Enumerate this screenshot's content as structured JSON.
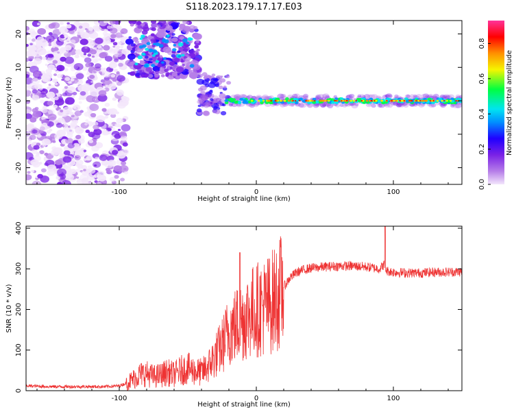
{
  "title": "S118.2023.179.17.17.E03",
  "chart_data": [
    {
      "type": "heatmap",
      "xlabel": "Height of straight line (km)",
      "ylabel": "Frequency (Hz)",
      "xlim": [
        -168,
        150
      ],
      "ylim": [
        -25,
        24
      ],
      "x_ticks": [
        -100,
        0,
        100
      ],
      "y_ticks": [
        -20,
        -10,
        0,
        10,
        20
      ],
      "colorbar": {
        "label": "Normalized spectral amplitude",
        "range": [
          0,
          0.93
        ],
        "ticks": [
          0.0,
          0.2,
          0.4,
          0.6,
          0.8
        ],
        "colors": [
          "#f3e6fb",
          "#b67ee8",
          "#7a22e6",
          "#2000ff",
          "#0090ff",
          "#00e5f0",
          "#00ff40",
          "#f5f500",
          "#ff9000",
          "#ff0000",
          "#ff3399"
        ]
      },
      "regions": [
        {
          "x": [
            -168,
            -95
          ],
          "freq": [
            -25,
            24
          ],
          "level": "scattered low amplitude noise"
        },
        {
          "x": [
            -93,
            -42
          ],
          "freq": [
            7,
            24
          ],
          "level": "moderate arc"
        },
        {
          "x": [
            -42,
            150
          ],
          "freq": [
            -2,
            2
          ],
          "level": "strong narrow line near 0 Hz"
        }
      ]
    },
    {
      "type": "line",
      "xlabel": "Height of straight line (km)",
      "ylabel": "SNR (10 * v/v)",
      "xlim": [
        -168,
        150
      ],
      "ylim": [
        0,
        405
      ],
      "x_ticks": [
        -100,
        0,
        100
      ],
      "y_ticks": [
        0,
        100,
        200,
        300,
        400
      ],
      "color": "#ee3333",
      "series": [
        {
          "x": [
            -168,
            -150,
            -130,
            -110,
            -100,
            -95,
            -90,
            -85,
            -80,
            -75,
            -70,
            -65,
            -60,
            -55,
            -50,
            -45,
            -40,
            -35,
            -30,
            -25,
            -20,
            -15,
            -10,
            -5,
            0,
            5,
            10,
            15,
            20,
            25,
            30,
            35,
            40,
            50,
            60,
            70,
            80,
            90,
            93,
            95,
            100,
            110,
            120,
            130,
            140,
            150
          ],
          "y": [
            12,
            10,
            10,
            10,
            12,
            18,
            28,
            40,
            42,
            35,
            38,
            45,
            40,
            50,
            55,
            48,
            45,
            60,
            85,
            110,
            150,
            160,
            175,
            190,
            200,
            205,
            215,
            230,
            255,
            280,
            292,
            298,
            302,
            305,
            307,
            307,
            305,
            300,
            310,
            295,
            292,
            290,
            290,
            292,
            292,
            293
          ]
        }
      ],
      "spikes": [
        {
          "x": -12,
          "y": 340
        },
        {
          "x": 94,
          "y": 405
        }
      ]
    }
  ]
}
